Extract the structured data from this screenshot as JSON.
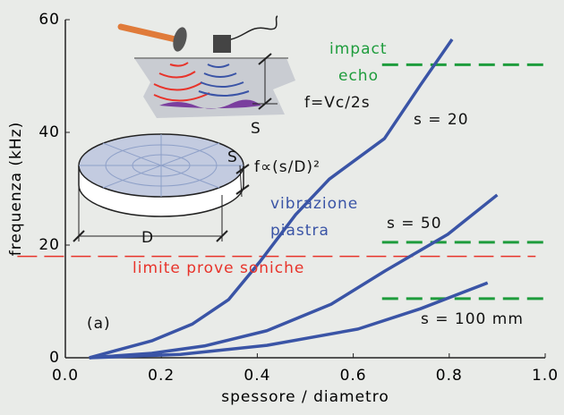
{
  "chart_data": {
    "type": "line",
    "x_label": "spessore / diametro",
    "y_label": "frequenza (kHz)",
    "xlim": [
      0,
      1.0
    ],
    "ylim": [
      0,
      60
    ],
    "xticks": [
      {
        "value": 0,
        "label": "0.0"
      },
      0.2,
      0.4,
      0.6,
      0.8,
      {
        "value": 1.0,
        "label": "1.0"
      }
    ],
    "yticks": [
      0,
      20,
      40,
      60
    ],
    "series": [
      {
        "name": "s = 20",
        "color": "#3a54a6",
        "x": [
          0.05,
          0.18,
          0.265,
          0.34,
          0.405,
          0.48,
          0.55,
          0.665,
          0.74,
          0.806
        ],
        "values": [
          0,
          3,
          6,
          10.3,
          17,
          25.4,
          31.7,
          38.9,
          48.4,
          56.5
        ]
      },
      {
        "name": "s = 50",
        "color": "#3a54a6",
        "x": [
          0.05,
          0.18,
          0.29,
          0.42,
          0.554,
          0.666,
          0.797,
          0.9
        ],
        "values": [
          0,
          0.8,
          2.1,
          4.8,
          9.5,
          15.4,
          21.9,
          28.9
        ]
      },
      {
        "name": "s = 100 mm",
        "color": "#3a54a6",
        "x": [
          0.05,
          0.24,
          0.42,
          0.61,
          0.74,
          0.88
        ],
        "values": [
          0,
          0.6,
          2.2,
          5.1,
          8.7,
          13.3
        ]
      }
    ],
    "reference_lines": [
      {
        "y": 52,
        "x": [
          0.66,
          1.0
        ],
        "color": "#1e9c3c"
      },
      {
        "y": 20.5,
        "x": [
          0.66,
          1.0
        ],
        "color": "#1e9c3c"
      },
      {
        "y": 10.5,
        "x": [
          0.66,
          1.0
        ],
        "color": "#1e9c3c"
      },
      {
        "y": 18,
        "x": [
          -0.1,
          0.98
        ],
        "color": "#e8332a"
      }
    ],
    "annotations": [
      {
        "text": "impact",
        "color": "#1e9c3c"
      },
      {
        "text": "echo",
        "color": "#1e9c3c"
      },
      {
        "text": "f=Vc/2s",
        "color": "#111111"
      },
      {
        "text": "f∝(s/D)²",
        "color": "#111111"
      },
      {
        "text": "vibrazione",
        "color": "#3a54a6"
      },
      {
        "text": "piastra",
        "color": "#3a54a6"
      },
      {
        "text": "limite prove soniche",
        "color": "#e8332a"
      },
      {
        "text": "(a)",
        "color": "#111111"
      },
      {
        "text": "S",
        "color": "#111111"
      },
      {
        "text": "S",
        "color": "#111111"
      },
      {
        "text": "D",
        "color": "#111111"
      }
    ]
  }
}
